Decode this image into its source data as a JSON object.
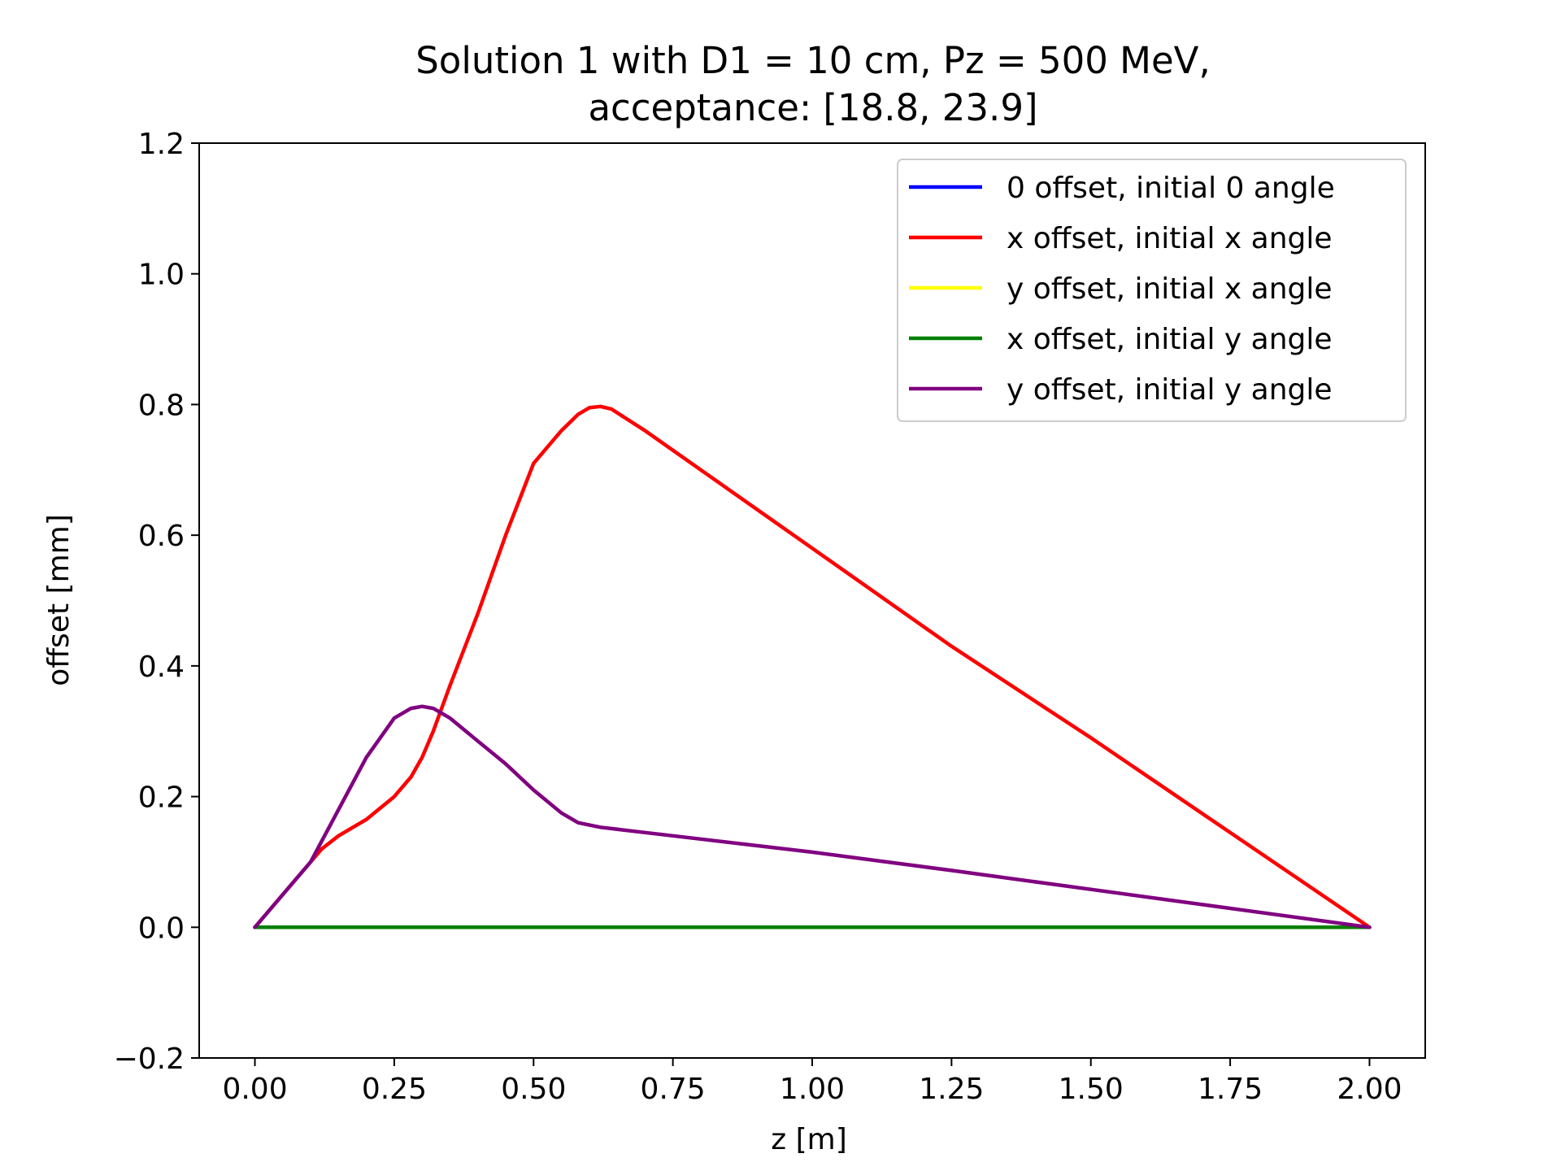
{
  "chart_data": {
    "type": "line",
    "title": [
      "Solution 1 with D1 = 10 cm, Pz = 500 MeV,",
      "acceptance: [18.8, 23.9]"
    ],
    "xlabel": "z [m]",
    "ylabel": "offset [mm]",
    "xlim": [
      -0.1,
      2.1
    ],
    "ylim": [
      -0.2,
      1.2
    ],
    "x_ticks": [
      0.0,
      0.25,
      0.5,
      0.75,
      1.0,
      1.25,
      1.5,
      1.75,
      2.0
    ],
    "x_tick_labels": [
      "0.00",
      "0.25",
      "0.50",
      "0.75",
      "1.00",
      "1.25",
      "1.50",
      "1.75",
      "2.00"
    ],
    "y_ticks": [
      -0.2,
      0.0,
      0.2,
      0.4,
      0.6,
      0.8,
      1.0,
      1.2
    ],
    "y_tick_labels": [
      "−0.2",
      "0.0",
      "0.2",
      "0.4",
      "0.6",
      "0.8",
      "1.0",
      "1.2"
    ],
    "grid": false,
    "legend_position": "top-right",
    "series": [
      {
        "name": "0 offset, initial 0 angle",
        "color": "#0000ff",
        "x": [
          0.0,
          2.0
        ],
        "y": [
          0.0,
          0.0
        ]
      },
      {
        "name": "x offset, initial x angle",
        "color": "#ff0000",
        "x": [
          0.0,
          0.05,
          0.1,
          0.12,
          0.15,
          0.2,
          0.25,
          0.28,
          0.3,
          0.32,
          0.35,
          0.4,
          0.45,
          0.5,
          0.55,
          0.58,
          0.6,
          0.62,
          0.64,
          0.7,
          0.8,
          1.0,
          1.25,
          1.5,
          1.75,
          2.0
        ],
        "y": [
          0.0,
          0.05,
          0.1,
          0.12,
          0.14,
          0.165,
          0.2,
          0.23,
          0.26,
          0.3,
          0.37,
          0.48,
          0.6,
          0.71,
          0.76,
          0.785,
          0.795,
          0.797,
          0.793,
          0.76,
          0.7,
          0.58,
          0.43,
          0.29,
          0.145,
          0.0
        ]
      },
      {
        "name": "y offset, initial x angle",
        "color": "#ffff00",
        "x": [
          0.0,
          2.0
        ],
        "y": [
          0.0,
          0.0
        ]
      },
      {
        "name": "x offset, initial y angle",
        "color": "#008000",
        "x": [
          0.0,
          2.0
        ],
        "y": [
          0.0,
          0.0
        ]
      },
      {
        "name": "y offset, initial y angle",
        "color": "#800080",
        "x": [
          0.0,
          0.05,
          0.1,
          0.15,
          0.2,
          0.25,
          0.28,
          0.3,
          0.32,
          0.35,
          0.4,
          0.45,
          0.5,
          0.55,
          0.58,
          0.62,
          0.7,
          0.8,
          1.0,
          1.25,
          1.5,
          1.75,
          2.0
        ],
        "y": [
          0.0,
          0.05,
          0.1,
          0.18,
          0.26,
          0.32,
          0.335,
          0.338,
          0.335,
          0.32,
          0.285,
          0.25,
          0.21,
          0.175,
          0.16,
          0.153,
          0.145,
          0.135,
          0.115,
          0.087,
          0.058,
          0.029,
          0.0
        ]
      }
    ]
  }
}
